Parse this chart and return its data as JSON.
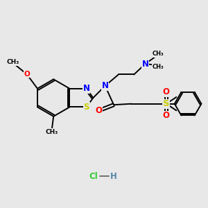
{
  "background_color": "#e8e8e8",
  "bond_color": "#000000",
  "N_color": "#0000ff",
  "O_color": "#ff0000",
  "S_color": "#cccc00",
  "Cl_color": "#33cc33",
  "H_color": "#5588aa",
  "font_size": 7.5,
  "lw": 1.4,
  "fig_w": 3.0,
  "fig_h": 3.0,
  "dpi": 100,
  "xlim": [
    0,
    10
  ],
  "ylim": [
    0,
    10
  ]
}
